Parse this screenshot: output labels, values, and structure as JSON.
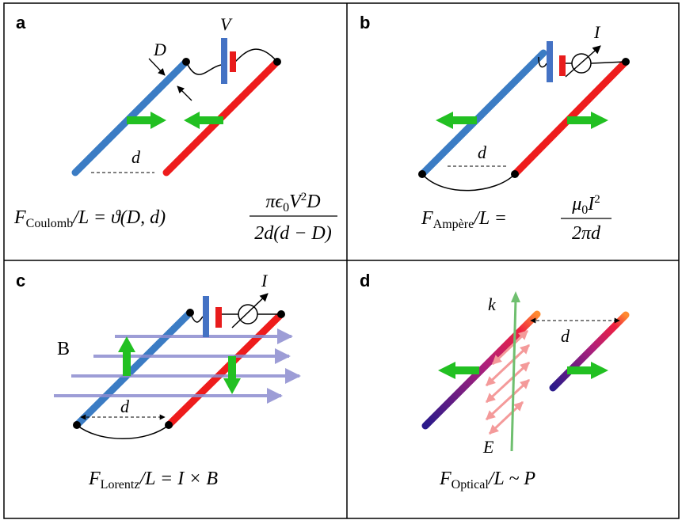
{
  "panels": [
    {
      "label": "a",
      "voltage": "V",
      "wire_diameter": "D",
      "separation": "d",
      "formula": {
        "force": "F",
        "subscript": "Coulomb",
        "per_length": "/L = ϑ(D, d)",
        "numerator": "πϵ",
        "numerator_sub": "0",
        "numerator_rest": "V",
        "numerator_sup": "2",
        "numerator_end": "D",
        "denominator": "2d(d − D)"
      }
    },
    {
      "label": "b",
      "current": "I",
      "separation": "d",
      "formula": {
        "force": "F",
        "subscript": "Ampère",
        "per_length": "/L =",
        "numerator": "μ",
        "numerator_sub": "0",
        "numerator_rest": "I",
        "numerator_sup": "2",
        "denominator": "2πd"
      }
    },
    {
      "label": "c",
      "current": "I",
      "field": "B",
      "separation": "d",
      "formula": {
        "force": "F",
        "subscript": "Lorentz",
        "rhs": "/L = I × B"
      }
    },
    {
      "label": "d",
      "wavevector": "k",
      "field": "E",
      "separation": "d",
      "formula": {
        "force": "F",
        "subscript": "Optical",
        "rhs": "/L ~ P"
      }
    }
  ]
}
